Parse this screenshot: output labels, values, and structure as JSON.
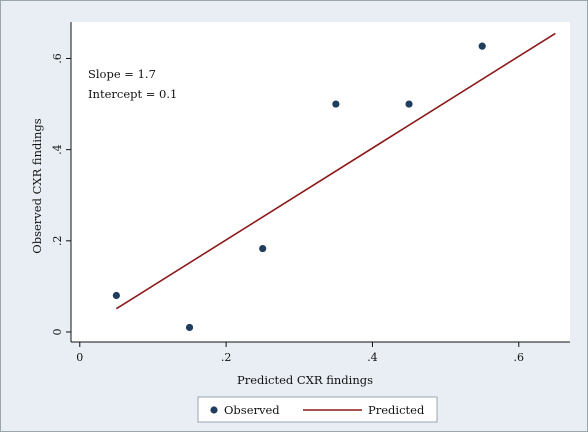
{
  "chart_data": {
    "type": "scatter",
    "xlabel": "Predicted CXR findings",
    "ylabel": "Observed CXR findings",
    "xlim": [
      -0.012,
      0.67
    ],
    "ylim": [
      -0.022,
      0.68
    ],
    "xticks": [
      0,
      0.2,
      0.4,
      0.6
    ],
    "xtick_labels": [
      "0",
      ".2",
      ".4",
      ".6"
    ],
    "yticks": [
      0,
      0.2,
      0.4,
      0.6
    ],
    "ytick_labels": [
      "0",
      ".2",
      ".4",
      ".6"
    ],
    "grid": false,
    "legend_position": "bottom",
    "annotations": [
      "Slope = 1.7",
      "Intercept = 0.1"
    ],
    "series": [
      {
        "name": "Observed",
        "kind": "scatter",
        "color": "#1f3d5c",
        "x": [
          0.05,
          0.15,
          0.25,
          0.35,
          0.45,
          0.55
        ],
        "y": [
          0.08,
          0.01,
          0.183,
          0.5,
          0.5,
          0.627
        ]
      },
      {
        "name": "Predicted",
        "kind": "line",
        "color": "#8b1a1a",
        "x": [
          0.05,
          0.65
        ],
        "y": [
          0.051,
          0.655
        ]
      }
    ],
    "colors": {
      "outer_background": "#e8eef3",
      "outer_border": "#9aa5ad",
      "plot_background": "#ffffff"
    }
  }
}
